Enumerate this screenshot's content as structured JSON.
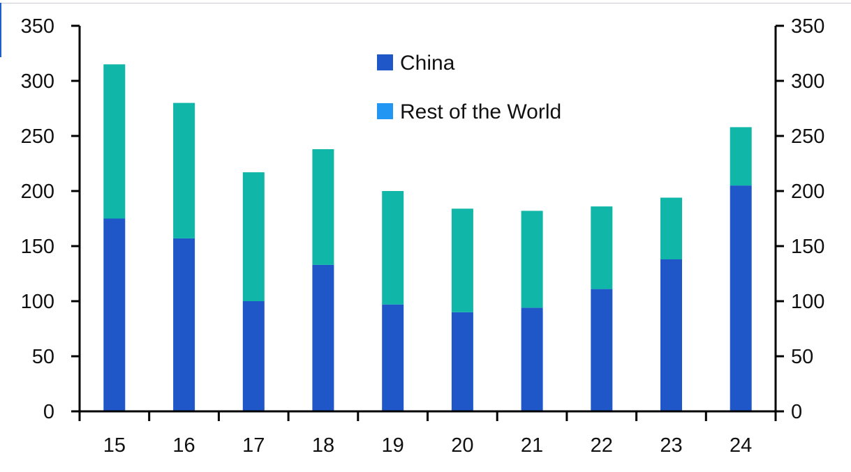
{
  "chart_data": {
    "type": "bar",
    "stacked": true,
    "categories": [
      "15",
      "16",
      "17",
      "18",
      "19",
      "20",
      "21",
      "22",
      "23",
      "24"
    ],
    "series": [
      {
        "name": "China",
        "color": "#1f57c8",
        "values": [
          175,
          157,
          100,
          133,
          97,
          90,
          94,
          111,
          138,
          205
        ]
      },
      {
        "name": "Rest of the World",
        "color": "#10b7a8",
        "values": [
          140,
          123,
          117,
          105,
          103,
          94,
          88,
          75,
          56,
          53
        ]
      }
    ],
    "legend_entries": [
      {
        "label": "China",
        "color": "#1f57c8"
      },
      {
        "label": "Rest of the World",
        "color": "#2196f3"
      }
    ],
    "legend_position": "top-center",
    "ylim": [
      0,
      350
    ],
    "y_ticks": [
      "0",
      "50",
      "100",
      "150",
      "200",
      "250",
      "300",
      "350"
    ],
    "y_axis_left": true,
    "y_axis_right": true,
    "grid": false
  }
}
